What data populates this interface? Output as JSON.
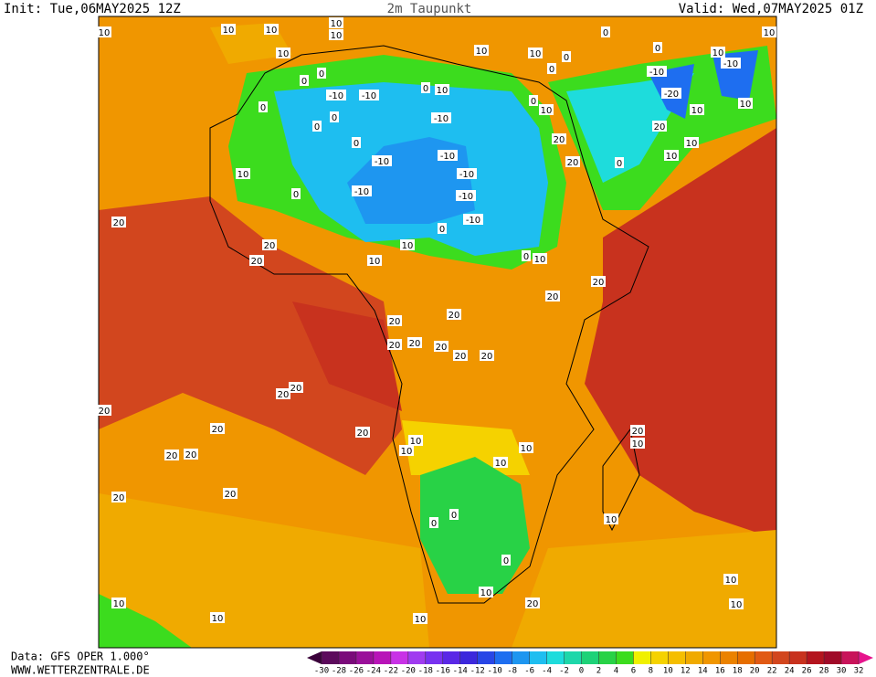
{
  "header": {
    "init": "Init: Tue,06MAY2025 12Z",
    "title": "2m Taupunkt",
    "valid": "Valid: Wed,07MAY2025 01Z"
  },
  "footer": {
    "source": "Data: GFS OPER 1.000°",
    "website": "WWW.WETTERZENTRALE.DE"
  },
  "legend": {
    "labels": [
      -30,
      -28,
      -26,
      -24,
      -22,
      -20,
      -18,
      -16,
      -14,
      -12,
      -10,
      -8,
      -6,
      -4,
      -2,
      0,
      2,
      4,
      6,
      8,
      10,
      12,
      14,
      16,
      18,
      20,
      22,
      24,
      26,
      28,
      30,
      32
    ],
    "colors": [
      "#3a003a",
      "#5c0a5c",
      "#7a0a7a",
      "#9a109a",
      "#b814b8",
      "#c832e6",
      "#a03cf0",
      "#7832f0",
      "#5a28e6",
      "#3c28dc",
      "#2846e6",
      "#1e6ef0",
      "#1e96f0",
      "#1ebef0",
      "#1edcdc",
      "#1ed7aa",
      "#1ed278",
      "#28d246",
      "#3cdc1e",
      "#f0f000",
      "#f5d200",
      "#f5be00",
      "#f0aa00",
      "#f09600",
      "#eb8200",
      "#e66e00",
      "#e15a14",
      "#d2461e",
      "#c8321e",
      "#b4141e",
      "#a00a28",
      "#c8145a",
      "#e6148c"
    ]
  },
  "contour_labels": [
    "10",
    "10",
    "10",
    "10",
    "10",
    "0",
    "0",
    "-10",
    "-10",
    "0",
    "0",
    "0",
    "0",
    "-10",
    "-10",
    "-10",
    "-10",
    "-10",
    "-10",
    "-10",
    "0",
    "0",
    "10",
    "10",
    "0",
    "10",
    "10",
    "20",
    "20",
    "20",
    "20",
    "20",
    "0",
    "20",
    "20",
    "20",
    "20",
    "20",
    "20",
    "20",
    "20",
    "20",
    "20",
    "20",
    "20",
    "20",
    "20",
    "20",
    "20",
    "20",
    "20",
    "10",
    "10",
    "10",
    "10",
    "20",
    "10",
    "0",
    "0",
    "0",
    "10",
    "20",
    "10",
    "10",
    "10",
    "10",
    "10",
    "10",
    "0",
    "-10",
    "-20",
    "-10",
    "10",
    "10",
    "10",
    "10",
    "20",
    "10",
    "0",
    "0",
    "10",
    "10",
    "0",
    "0",
    "10",
    "0",
    "10",
    "10",
    "10"
  ]
}
